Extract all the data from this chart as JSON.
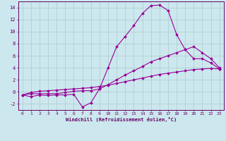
{
  "x": [
    0,
    1,
    2,
    3,
    4,
    5,
    6,
    7,
    8,
    9,
    10,
    11,
    12,
    13,
    14,
    15,
    16,
    17,
    18,
    19,
    20,
    21,
    22,
    23
  ],
  "line1": [
    -0.5,
    -0.8,
    -0.5,
    -0.6,
    -0.5,
    -0.5,
    -0.4,
    -2.5,
    -1.8,
    0.5,
    4.0,
    7.5,
    9.2,
    11.0,
    13.0,
    14.3,
    14.4,
    13.5,
    9.5,
    7.0,
    5.5,
    5.5,
    4.8,
    3.8
  ],
  "line2": [
    -0.5,
    -0.3,
    -0.3,
    -0.3,
    -0.3,
    -0.1,
    0.1,
    0.2,
    0.2,
    0.5,
    1.2,
    2.0,
    2.8,
    3.5,
    4.2,
    5.0,
    5.5,
    6.0,
    6.5,
    7.0,
    7.5,
    6.5,
    5.5,
    4.0
  ],
  "line3": [
    -0.5,
    -0.1,
    0.1,
    0.2,
    0.3,
    0.4,
    0.5,
    0.6,
    0.7,
    0.9,
    1.1,
    1.4,
    1.7,
    2.0,
    2.3,
    2.6,
    2.9,
    3.1,
    3.3,
    3.5,
    3.7,
    3.8,
    3.9,
    3.8
  ],
  "color": "#990099",
  "bg_color": "#cce8ee",
  "grid_color": "#aacccc",
  "axis_color": "#660066",
  "xlabel": "Windchill (Refroidissement éolien,°C)",
  "ylim": [
    -3,
    15
  ],
  "xlim": [
    -0.5,
    23.5
  ],
  "yticks": [
    -2,
    0,
    2,
    4,
    6,
    8,
    10,
    12,
    14
  ],
  "xticks": [
    0,
    1,
    2,
    3,
    4,
    5,
    6,
    7,
    8,
    9,
    10,
    11,
    12,
    13,
    14,
    15,
    16,
    17,
    18,
    19,
    20,
    21,
    22,
    23
  ]
}
